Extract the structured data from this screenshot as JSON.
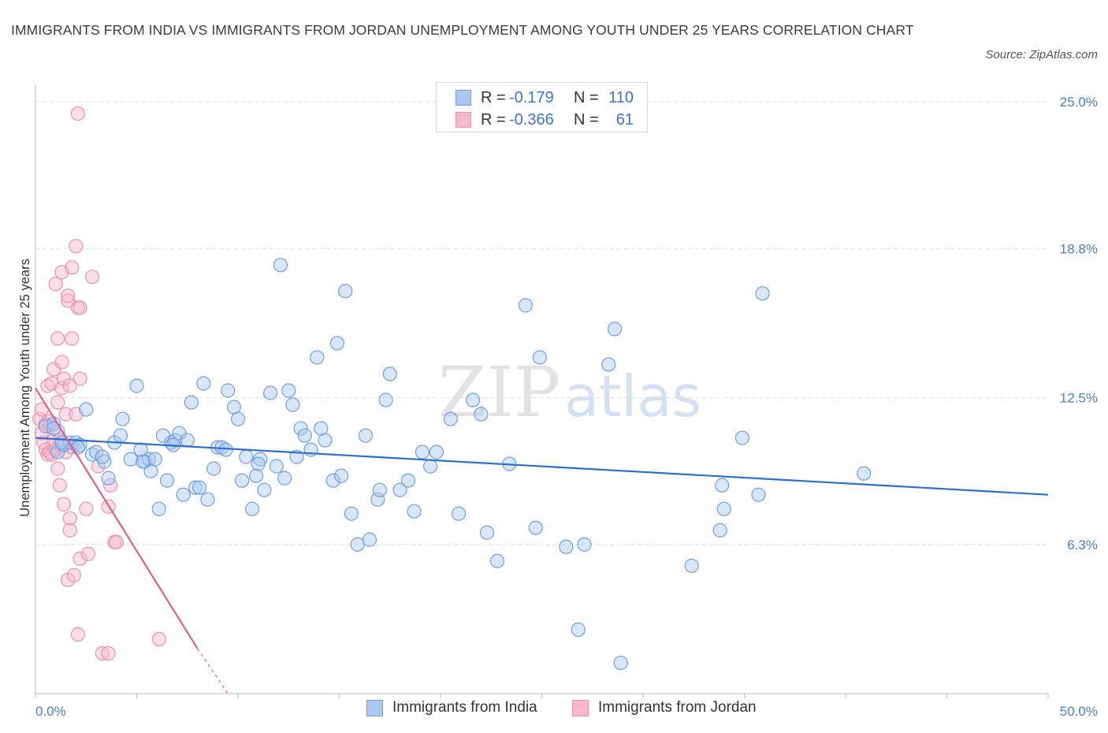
{
  "title": "IMMIGRANTS FROM INDIA VS IMMIGRANTS FROM JORDAN UNEMPLOYMENT AMONG YOUTH UNDER 25 YEARS CORRELATION CHART",
  "source": "Source: ZipAtlas.com",
  "watermark": {
    "zip": "ZIP",
    "atlas": "atlas"
  },
  "colors": {
    "india_fill": "#a9c7f0",
    "india_stroke": "#6f9fe0",
    "india_line": "#2b6fcc",
    "jordan_fill": "#f6b8cb",
    "jordan_stroke": "#ee8fb0",
    "jordan_line": "#e0608f",
    "axis_text": "#4a7cc9",
    "grid": "#dddddd"
  },
  "legend": {
    "india": {
      "r_label": "R =",
      "r_value": "-0.179",
      "n_label": "N =",
      "n_value": "110"
    },
    "jordan": {
      "r_label": "R =",
      "r_value": "-0.366",
      "n_label": "N =",
      "n_value": "61"
    }
  },
  "chart_data": {
    "type": "scatter",
    "title": "IMMIGRANTS FROM INDIA VS IMMIGRANTS FROM JORDAN UNEMPLOYMENT AMONG YOUTH UNDER 25 YEARS CORRELATION CHART",
    "xlabel": "",
    "ylabel": "Unemployment Among Youth under 25 years",
    "xlim": [
      0,
      50
    ],
    "ylim": [
      0,
      25.5
    ],
    "x_tick_labels": [
      {
        "value": 0,
        "label": "0.0%"
      },
      {
        "value": 50,
        "label": "50.0%"
      }
    ],
    "y_tick_labels": [
      {
        "value": 6.3,
        "label": "6.3%"
      },
      {
        "value": 12.5,
        "label": "12.5%"
      },
      {
        "value": 18.8,
        "label": "18.8%"
      },
      {
        "value": 25.0,
        "label": "25.0%"
      }
    ],
    "x_minor_ticks": [
      0,
      5,
      10,
      15,
      20,
      25,
      30,
      35,
      40,
      45,
      50
    ],
    "grid": true,
    "legend_position": "top-center",
    "series": [
      {
        "name": "Immigrants from India",
        "color": "#a9c7f0",
        "trend": {
          "x": [
            0,
            50
          ],
          "y": [
            10.8,
            8.4
          ]
        },
        "points": [
          [
            0.5,
            11.3
          ],
          [
            0.9,
            11.4
          ],
          [
            1.1,
            10.2
          ],
          [
            1.4,
            10.5
          ],
          [
            1.7,
            10.6
          ],
          [
            2.0,
            10.6
          ],
          [
            2.2,
            10.5
          ],
          [
            2.5,
            12.0
          ],
          [
            2.8,
            10.1
          ],
          [
            3.0,
            10.2
          ],
          [
            3.4,
            9.8
          ],
          [
            3.6,
            9.1
          ],
          [
            3.9,
            10.6
          ],
          [
            4.2,
            10.9
          ],
          [
            4.3,
            11.6
          ],
          [
            4.7,
            9.9
          ],
          [
            5.0,
            13.0
          ],
          [
            5.2,
            10.3
          ],
          [
            5.4,
            9.8
          ],
          [
            5.6,
            9.9
          ],
          [
            5.7,
            9.4
          ],
          [
            5.9,
            9.9
          ],
          [
            6.1,
            7.8
          ],
          [
            6.3,
            10.9
          ],
          [
            6.5,
            9.0
          ],
          [
            6.7,
            10.6
          ],
          [
            6.9,
            10.7
          ],
          [
            7.1,
            11.0
          ],
          [
            7.3,
            8.4
          ],
          [
            7.5,
            10.7
          ],
          [
            7.7,
            12.3
          ],
          [
            7.9,
            8.7
          ],
          [
            8.1,
            8.7
          ],
          [
            8.3,
            13.1
          ],
          [
            8.5,
            8.2
          ],
          [
            8.8,
            9.5
          ],
          [
            9.0,
            10.4
          ],
          [
            9.2,
            10.4
          ],
          [
            9.5,
            12.8
          ],
          [
            9.8,
            12.1
          ],
          [
            10.0,
            11.6
          ],
          [
            10.2,
            9.0
          ],
          [
            10.4,
            10.0
          ],
          [
            10.7,
            7.8
          ],
          [
            10.9,
            9.2
          ],
          [
            11.1,
            9.9
          ],
          [
            11.3,
            8.6
          ],
          [
            11.6,
            12.7
          ],
          [
            11.9,
            9.6
          ],
          [
            12.1,
            18.1
          ],
          [
            12.3,
            9.1
          ],
          [
            12.5,
            12.8
          ],
          [
            12.7,
            12.2
          ],
          [
            12.9,
            10.0
          ],
          [
            13.1,
            11.2
          ],
          [
            13.3,
            10.9
          ],
          [
            13.6,
            10.3
          ],
          [
            13.9,
            14.2
          ],
          [
            14.1,
            11.2
          ],
          [
            14.3,
            10.7
          ],
          [
            14.7,
            9.0
          ],
          [
            14.9,
            14.8
          ],
          [
            15.1,
            9.2
          ],
          [
            15.3,
            17.0
          ],
          [
            15.6,
            7.6
          ],
          [
            15.9,
            6.3
          ],
          [
            16.3,
            10.9
          ],
          [
            16.5,
            6.5
          ],
          [
            16.9,
            8.2
          ],
          [
            17.0,
            8.6
          ],
          [
            17.3,
            12.4
          ],
          [
            17.5,
            13.5
          ],
          [
            18.0,
            8.6
          ],
          [
            18.4,
            9.0
          ],
          [
            18.7,
            7.7
          ],
          [
            19.1,
            10.2
          ],
          [
            19.5,
            9.6
          ],
          [
            19.8,
            10.2
          ],
          [
            20.5,
            11.6
          ],
          [
            20.9,
            7.6
          ],
          [
            21.6,
            12.4
          ],
          [
            22.0,
            11.8
          ],
          [
            22.3,
            6.8
          ],
          [
            22.8,
            5.6
          ],
          [
            23.4,
            9.7
          ],
          [
            24.2,
            16.4
          ],
          [
            24.7,
            7.0
          ],
          [
            24.9,
            14.2
          ],
          [
            26.2,
            6.2
          ],
          [
            26.8,
            2.7
          ],
          [
            27.1,
            6.3
          ],
          [
            28.3,
            13.9
          ],
          [
            28.6,
            15.4
          ],
          [
            28.9,
            1.3
          ],
          [
            32.4,
            5.4
          ],
          [
            33.9,
            8.8
          ],
          [
            34.0,
            7.8
          ],
          [
            33.8,
            6.9
          ],
          [
            34.9,
            10.8
          ],
          [
            35.7,
            8.4
          ],
          [
            35.9,
            16.9
          ],
          [
            40.9,
            9.3
          ],
          [
            0.9,
            11.2
          ],
          [
            1.3,
            10.6
          ],
          [
            2.1,
            10.4
          ],
          [
            3.3,
            10.0
          ],
          [
            5.3,
            9.8
          ],
          [
            6.8,
            10.5
          ],
          [
            9.4,
            10.3
          ],
          [
            11.0,
            9.7
          ]
        ]
      },
      {
        "name": "Immigrants from Jordan",
        "color": "#f6b8cb",
        "trend": {
          "x": [
            0,
            8.0
          ],
          "y": [
            12.9,
            1.9
          ]
        },
        "trend_dashed_to": {
          "x": 9.5,
          "y": 0
        },
        "points": [
          [
            0.2,
            11.6
          ],
          [
            0.3,
            11.0
          ],
          [
            0.3,
            12.0
          ],
          [
            0.4,
            10.6
          ],
          [
            0.5,
            11.4
          ],
          [
            0.5,
            10.3
          ],
          [
            0.6,
            13.0
          ],
          [
            0.6,
            10.1
          ],
          [
            0.7,
            11.3
          ],
          [
            0.7,
            10.2
          ],
          [
            0.8,
            13.1
          ],
          [
            0.8,
            10.1
          ],
          [
            0.9,
            10.7
          ],
          [
            0.9,
            13.7
          ],
          [
            1.0,
            10.3
          ],
          [
            1.1,
            11.1
          ],
          [
            1.1,
            12.3
          ],
          [
            1.0,
            17.3
          ],
          [
            1.1,
            15.0
          ],
          [
            1.1,
            9.5
          ],
          [
            1.2,
            8.8
          ],
          [
            1.2,
            10.7
          ],
          [
            1.3,
            17.8
          ],
          [
            1.3,
            14.0
          ],
          [
            1.3,
            12.9
          ],
          [
            1.3,
            10.5
          ],
          [
            1.4,
            13.3
          ],
          [
            1.4,
            8.0
          ],
          [
            1.5,
            11.8
          ],
          [
            1.5,
            10.2
          ],
          [
            1.6,
            16.6
          ],
          [
            1.6,
            16.8
          ],
          [
            1.7,
            13.0
          ],
          [
            1.7,
            7.4
          ],
          [
            1.7,
            6.9
          ],
          [
            1.6,
            4.8
          ],
          [
            1.8,
            15.0
          ],
          [
            1.8,
            18.0
          ],
          [
            1.9,
            5.0
          ],
          [
            1.8,
            10.4
          ],
          [
            2.0,
            11.8
          ],
          [
            2.0,
            18.9
          ],
          [
            2.1,
            16.3
          ],
          [
            2.1,
            2.5
          ],
          [
            2.1,
            24.5
          ],
          [
            2.2,
            13.3
          ],
          [
            2.2,
            16.3
          ],
          [
            2.2,
            5.7
          ],
          [
            2.5,
            7.8
          ],
          [
            2.6,
            5.9
          ],
          [
            2.8,
            17.6
          ],
          [
            3.1,
            9.6
          ],
          [
            3.3,
            1.7
          ],
          [
            3.6,
            7.9
          ],
          [
            3.6,
            1.7
          ],
          [
            3.7,
            8.8
          ],
          [
            3.9,
            6.4
          ],
          [
            4.0,
            6.4
          ],
          [
            6.1,
            2.3
          ],
          [
            1.0,
            10.3
          ],
          [
            0.7,
            11.5
          ]
        ]
      }
    ]
  }
}
